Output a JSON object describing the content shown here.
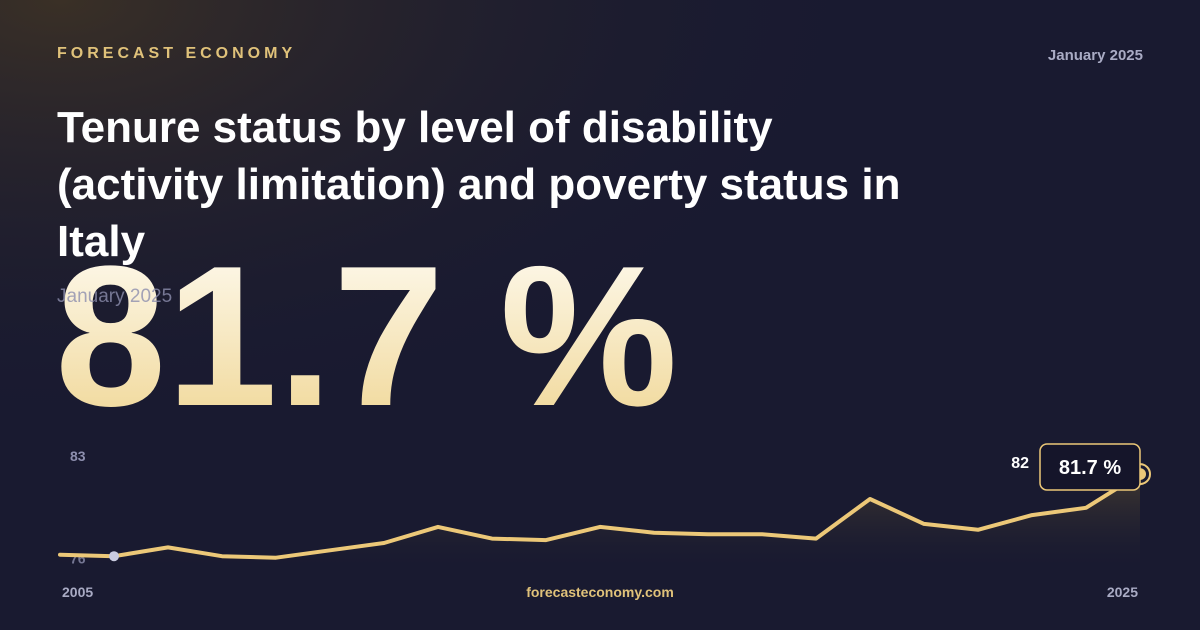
{
  "brand": "FORECAST ECONOMY",
  "date": "January 2025",
  "title": "Tenure status by level of disability (activity limitation) and poverty status in Italy",
  "footer": "forecasteconomy.com",
  "chart_data": {
    "type": "line",
    "headline": {
      "value": 81.7,
      "label": "81.7 %"
    },
    "end_label": "82",
    "x": [
      2005,
      2006,
      2007,
      2008,
      2009,
      2010,
      2011,
      2012,
      2013,
      2014,
      2015,
      2016,
      2017,
      2018,
      2019,
      2020,
      2021,
      2022,
      2023,
      2024,
      2025
    ],
    "values": [
      76.2,
      76.1,
      76.7,
      76.1,
      76.0,
      76.5,
      77.0,
      78.1,
      77.3,
      77.2,
      78.1,
      77.7,
      77.6,
      77.6,
      77.3,
      80.0,
      78.3,
      77.9,
      78.9,
      79.4,
      81.7
    ],
    "color": "#ecc878",
    "xlim": [
      2005,
      2025
    ],
    "xticks": [
      2005,
      2025
    ],
    "ylim": [
      75.5,
      83
    ],
    "yticks": [
      76,
      83
    ]
  }
}
